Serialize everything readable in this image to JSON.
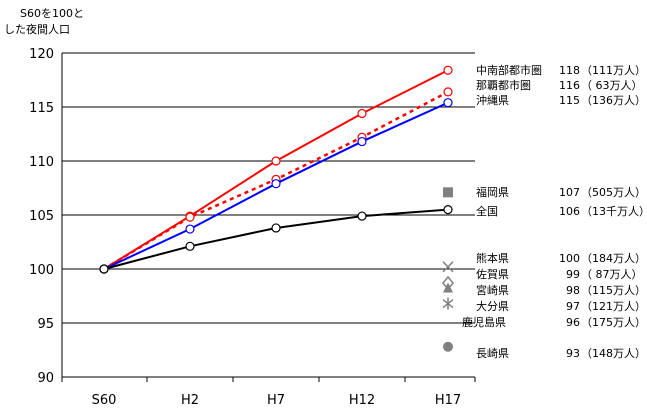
{
  "chart_data": {
    "type": "line",
    "ylabel_lines": [
      "S60を100と",
      "した夜間人口"
    ],
    "categories": [
      "S60",
      "H2",
      "H7",
      "H12",
      "H17"
    ],
    "ylim": [
      90,
      120
    ],
    "yticks": [
      90,
      95,
      100,
      105,
      110,
      115,
      120
    ],
    "grid": true,
    "series": [
      {
        "name": "中南部都市圏",
        "values": [
          100,
          104.9,
          110.0,
          114.4,
          118.4
        ],
        "color": "#ff0000",
        "style": "solid",
        "marker": "circle-open",
        "label_value": "118",
        "label_pop": "（111万人）"
      },
      {
        "name": "那覇都市圏",
        "values": [
          100,
          104.8,
          108.3,
          112.2,
          116.4
        ],
        "color": "#ff0000",
        "style": "dotted",
        "marker": "circle-open",
        "label_value": "116",
        "label_pop": "（ 63万人）"
      },
      {
        "name": "沖縄県",
        "values": [
          100,
          103.7,
          107.9,
          111.8,
          115.4
        ],
        "color": "#0000ff",
        "style": "solid",
        "marker": "circle-open",
        "label_value": "115",
        "label_pop": "（136万人）"
      },
      {
        "name": "全国",
        "values": [
          100,
          102.1,
          103.8,
          104.9,
          105.5
        ],
        "color": "#000000",
        "style": "solid",
        "marker": "circle-open",
        "label_value": "106",
        "label_pop": "（13千万人）"
      }
    ],
    "points_h17": [
      {
        "name": "福岡県",
        "value": 107.1,
        "label_value": "107",
        "label_pop": "（505万人）",
        "marker": "square",
        "color": "#808080"
      },
      {
        "name": "熊本県",
        "value": 100.2,
        "label_value": "100",
        "label_pop": "（184万人）",
        "marker": "x",
        "color": "#808080"
      },
      {
        "name": "佐賀県",
        "value": 98.7,
        "label_value": "99",
        "label_pop": "（ 87万人）",
        "marker": "diamond-open",
        "color": "#808080"
      },
      {
        "name": "宮崎県",
        "value": 98.2,
        "label_value": "98",
        "label_pop": "（115万人）",
        "marker": "triangle",
        "color": "#808080"
      },
      {
        "name": "大分県",
        "value": 96.8,
        "label_value": "97",
        "label_pop": "（121万人）",
        "marker": "asterisk",
        "color": "#808080"
      },
      {
        "name": "鹿児島県",
        "value": 96.3,
        "label_value": "96",
        "label_pop": "（175万人）",
        "marker": "none",
        "color": "#808080"
      },
      {
        "name": "長崎県",
        "value": 92.8,
        "label_value": "93",
        "label_pop": "（148万人）",
        "marker": "circle",
        "color": "#808080"
      }
    ]
  }
}
